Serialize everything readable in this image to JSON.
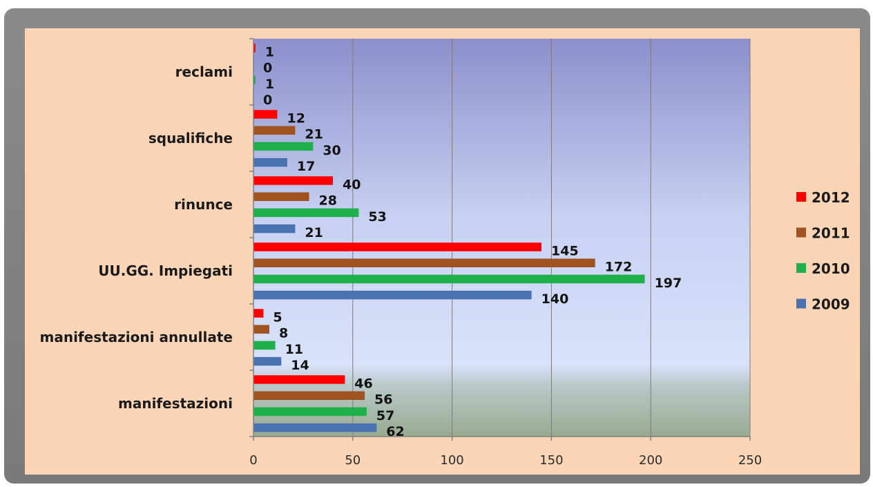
{
  "chart_data": {
    "type": "bar",
    "orientation": "horizontal",
    "title": "",
    "xlabel": "",
    "ylabel": "",
    "xlim": [
      0,
      250
    ],
    "xticks": [
      0,
      50,
      100,
      150,
      200,
      250
    ],
    "grid": true,
    "legend_position": "right",
    "categories": [
      "manifestazioni",
      "manifestazioni annullate",
      "UU.GG. Impiegati",
      "rinunce",
      "squalifiche",
      "reclami"
    ],
    "series": [
      {
        "name": "2012",
        "color": "#ff0000",
        "values": [
          46,
          5,
          145,
          40,
          12,
          1
        ]
      },
      {
        "name": "2011",
        "color": "#a0521f",
        "values": [
          56,
          8,
          172,
          28,
          21,
          0
        ]
      },
      {
        "name": "2010",
        "color": "#1fb04c",
        "values": [
          57,
          11,
          197,
          53,
          30,
          1
        ]
      },
      {
        "name": "2009",
        "color": "#4a72b0",
        "values": [
          62,
          14,
          140,
          21,
          17,
          0
        ]
      }
    ]
  }
}
